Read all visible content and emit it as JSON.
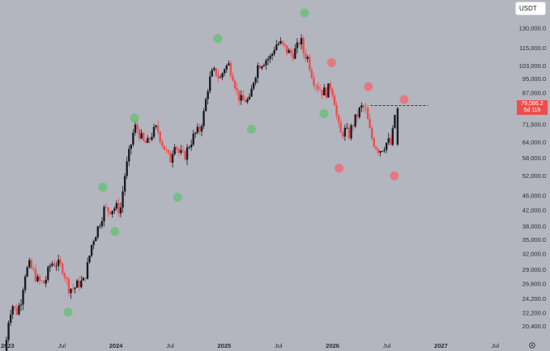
{
  "currency_selector": {
    "label": "USDT"
  },
  "price_tag": {
    "price": "79,086.2",
    "countdown": "5d 11h"
  },
  "chart_data": {
    "type": "candlestick",
    "y_scale": "log",
    "y_ticks": [
      "130,000.0",
      "115,000.0",
      "103,000.0",
      "95,000.0",
      "87,000.0",
      "71,500.0",
      "64,000.0",
      "58,000.0",
      "52,000.0",
      "46,000.0",
      "42,000.0",
      "38,000.0",
      "35,000.0",
      "32,000.0",
      "29,000.0",
      "26,600.0",
      "24,200.0",
      "22,200.0",
      "20,400.0"
    ],
    "y_tick_values": [
      130000,
      115000,
      103000,
      95000,
      87000,
      71500,
      64000,
      58000,
      52000,
      46000,
      42000,
      38000,
      35000,
      32000,
      29000,
      26600,
      24200,
      22200,
      20400
    ],
    "ylim": [
      18800,
      155000
    ],
    "x_ticks": [
      {
        "label": "2023",
        "t": 2023.0,
        "bold": true
      },
      {
        "label": "Jul",
        "t": 2023.5,
        "bold": false
      },
      {
        "label": "2024",
        "t": 2024.0,
        "bold": true
      },
      {
        "label": "Jul",
        "t": 2024.5,
        "bold": false
      },
      {
        "label": "2025",
        "t": 2025.0,
        "bold": true
      },
      {
        "label": "Jul",
        "t": 2025.5,
        "bold": false
      },
      {
        "label": "2026",
        "t": 2026.0,
        "bold": true
      },
      {
        "label": "Jul",
        "t": 2026.5,
        "bold": false
      },
      {
        "label": "2027",
        "t": 2027.0,
        "bold": true
      },
      {
        "label": "Jul",
        "t": 2027.5,
        "bold": false
      }
    ],
    "xlim": [
      2022.93,
      2027.67
    ],
    "current_price": 79086.2,
    "resistance_line": {
      "price": 80500,
      "t_start": 2026.35,
      "t_end": 2026.88
    },
    "markers_green": [
      {
        "t": 2023.56,
        "price": 22300
      },
      {
        "t": 2023.88,
        "price": 48500
      },
      {
        "t": 2023.99,
        "price": 36800
      },
      {
        "t": 2024.17,
        "price": 74500
      },
      {
        "t": 2024.57,
        "price": 45500
      },
      {
        "t": 2024.94,
        "price": 122000
      },
      {
        "t": 2025.25,
        "price": 69500
      },
      {
        "t": 2025.74,
        "price": 143000
      },
      {
        "t": 2025.92,
        "price": 76500
      }
    ],
    "markers_red": [
      {
        "t": 2025.99,
        "price": 105000
      },
      {
        "t": 2026.06,
        "price": 54500
      },
      {
        "t": 2026.33,
        "price": 90500
      },
      {
        "t": 2026.57,
        "price": 52000
      },
      {
        "t": 2026.66,
        "price": 83500
      }
    ],
    "anchors": [
      [
        2022.99,
        16600
      ],
      [
        2023.03,
        21500
      ],
      [
        2023.06,
        23500
      ],
      [
        2023.1,
        22200
      ],
      [
        2023.14,
        23800
      ],
      [
        2023.18,
        28400
      ],
      [
        2023.22,
        29800
      ],
      [
        2023.26,
        28500
      ],
      [
        2023.3,
        27000
      ],
      [
        2023.36,
        26700
      ],
      [
        2023.42,
        30300
      ],
      [
        2023.47,
        30200
      ],
      [
        2023.53,
        29300
      ],
      [
        2023.58,
        26000
      ],
      [
        2023.63,
        25800
      ],
      [
        2023.67,
        26600
      ],
      [
        2023.72,
        27000
      ],
      [
        2023.76,
        30000
      ],
      [
        2023.8,
        34500
      ],
      [
        2023.85,
        37500
      ],
      [
        2023.91,
        42200
      ],
      [
        2023.95,
        42000
      ],
      [
        2023.99,
        42500
      ],
      [
        2024.02,
        42800
      ],
      [
        2024.06,
        42000
      ],
      [
        2024.1,
        52000
      ],
      [
        2024.15,
        61500
      ],
      [
        2024.19,
        70500
      ],
      [
        2024.22,
        69500
      ],
      [
        2024.27,
        64000
      ],
      [
        2024.31,
        63500
      ],
      [
        2024.35,
        67500
      ],
      [
        2024.4,
        70000
      ],
      [
        2024.44,
        64500
      ],
      [
        2024.48,
        60500
      ],
      [
        2024.52,
        57000
      ],
      [
        2024.56,
        64500
      ],
      [
        2024.6,
        60000
      ],
      [
        2024.65,
        58500
      ],
      [
        2024.7,
        63500
      ],
      [
        2024.75,
        67500
      ],
      [
        2024.79,
        69000
      ],
      [
        2024.83,
        76500
      ],
      [
        2024.87,
        91000
      ],
      [
        2024.9,
        97500
      ],
      [
        2024.94,
        99500
      ],
      [
        2024.98,
        94500
      ],
      [
        2025.02,
        102000
      ],
      [
        2025.06,
        103500
      ],
      [
        2025.1,
        97000
      ],
      [
        2025.14,
        86500
      ],
      [
        2025.18,
        82500
      ],
      [
        2025.22,
        83500
      ],
      [
        2025.25,
        82000
      ],
      [
        2025.29,
        94500
      ],
      [
        2025.33,
        103500
      ],
      [
        2025.37,
        105500
      ],
      [
        2025.41,
        107500
      ],
      [
        2025.45,
        108500
      ],
      [
        2025.49,
        117500
      ],
      [
        2025.53,
        118500
      ],
      [
        2025.57,
        115500
      ],
      [
        2025.61,
        112000
      ],
      [
        2025.65,
        111000
      ],
      [
        2025.7,
        116000
      ],
      [
        2025.72,
        123000
      ],
      [
        2025.75,
        112000
      ],
      [
        2025.79,
        108000
      ],
      [
        2025.84,
        95000
      ],
      [
        2025.88,
        91000
      ],
      [
        2025.92,
        88000
      ],
      [
        2025.96,
        87500
      ],
      [
        2026.0,
        91000
      ],
      [
        2026.03,
        86000
      ],
      [
        2026.06,
        74000
      ],
      [
        2026.09,
        67000
      ],
      [
        2026.13,
        69000
      ],
      [
        2026.17,
        67000
      ],
      [
        2026.2,
        71000
      ],
      [
        2026.24,
        75000
      ],
      [
        2026.28,
        79500
      ],
      [
        2026.32,
        79000
      ],
      [
        2026.37,
        67000
      ],
      [
        2026.41,
        63000
      ],
      [
        2026.45,
        61000
      ],
      [
        2026.49,
        62500
      ],
      [
        2026.53,
        64500
      ],
      [
        2026.56,
        62800
      ],
      [
        2026.6,
        79086
      ]
    ]
  }
}
